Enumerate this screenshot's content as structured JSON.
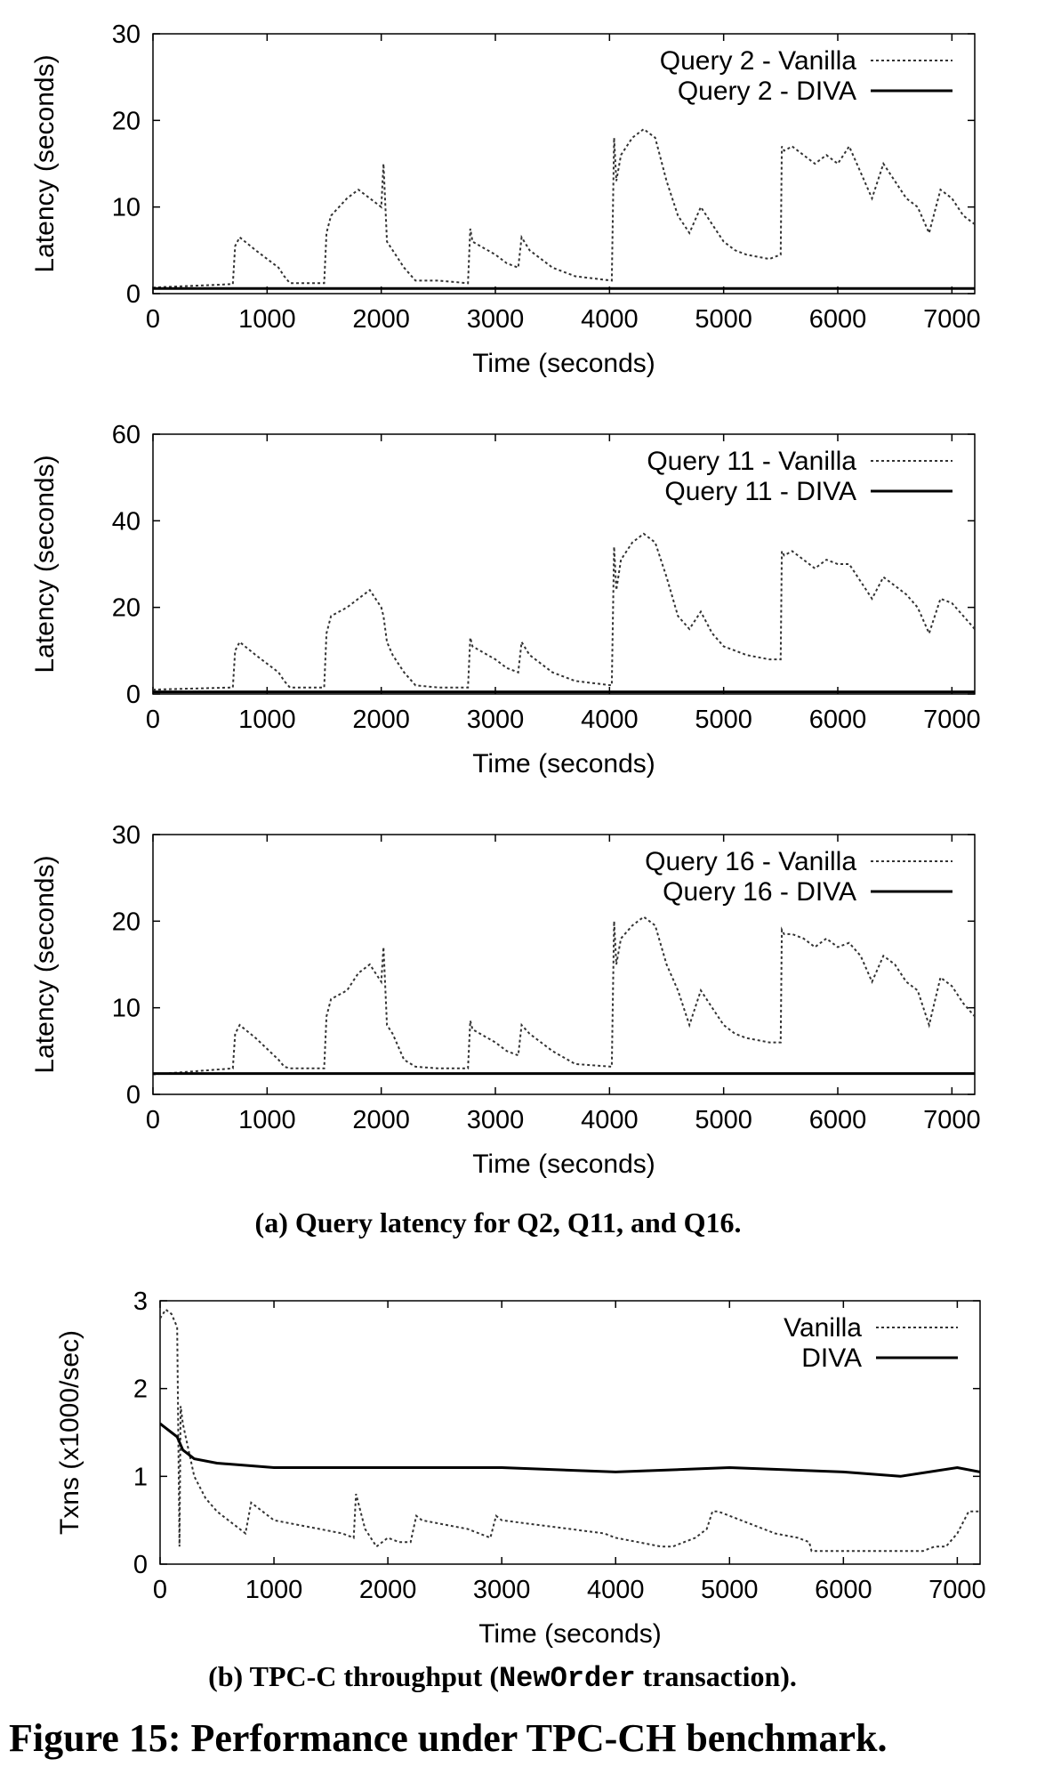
{
  "chart_data": [
    {
      "type": "line",
      "title": "",
      "xlabel": "Time (seconds)",
      "ylabel": "Latency (seconds)",
      "xlim": [
        0,
        7200
      ],
      "ylim": [
        0,
        30
      ],
      "xticks": [
        "0",
        "1000",
        "2000",
        "3000",
        "4000",
        "5000",
        "6000",
        "7000"
      ],
      "yticks": [
        "0",
        "10",
        "20",
        "30"
      ],
      "legend": "top-right",
      "series": [
        {
          "name": "Query 2 - Vanilla",
          "style": "dotted",
          "x": [
            0,
            700,
            720,
            760,
            900,
            1100,
            1150,
            1200,
            1500,
            1520,
            1560,
            1700,
            1800,
            1900,
            2000,
            2020,
            2050,
            2100,
            2200,
            2300,
            2500,
            2760,
            2780,
            2800,
            3000,
            3100,
            3200,
            3230,
            3300,
            3500,
            3700,
            4020,
            4040,
            4060,
            4100,
            4200,
            4300,
            4400,
            4500,
            4600,
            4700,
            4800,
            4900,
            5000,
            5100,
            5200,
            5400,
            5500,
            5510,
            5530,
            5600,
            5700,
            5800,
            5900,
            6000,
            6100,
            6200,
            6300,
            6400,
            6500,
            6600,
            6700,
            6800,
            6900,
            7000,
            7100,
            7200
          ],
          "y": [
            0.7,
            1.1,
            5.5,
            6.5,
            5.0,
            3.0,
            2.0,
            1.2,
            1.2,
            7.0,
            9.0,
            11.0,
            12.0,
            11.0,
            10.0,
            15.0,
            6.0,
            5.0,
            3.0,
            1.5,
            1.5,
            1.2,
            7.5,
            6.0,
            4.5,
            3.5,
            3.0,
            6.5,
            5.0,
            3.0,
            2.0,
            1.5,
            18.0,
            13.0,
            16.0,
            18.0,
            19.0,
            18.0,
            13.0,
            9.0,
            7.0,
            10.0,
            8.0,
            6.0,
            5.0,
            4.5,
            4.0,
            4.5,
            17.0,
            16.5,
            17.0,
            16.0,
            15.0,
            16.0,
            15.0,
            17.0,
            14.0,
            11.0,
            15.0,
            13.0,
            11.0,
            10.0,
            7.0,
            12.0,
            11.0,
            9.0,
            8.0
          ]
        },
        {
          "name": "Query 2 - DIVA",
          "style": "solid",
          "x": [
            0,
            1000,
            2000,
            3000,
            4000,
            5000,
            6000,
            7000,
            7200
          ],
          "y": [
            0.6,
            0.6,
            0.6,
            0.6,
            0.6,
            0.6,
            0.6,
            0.6,
            0.6
          ]
        }
      ]
    },
    {
      "type": "line",
      "title": "",
      "xlabel": "Time (seconds)",
      "ylabel": "Latency (seconds)",
      "xlim": [
        0,
        7200
      ],
      "ylim": [
        0,
        60
      ],
      "xticks": [
        "0",
        "1000",
        "2000",
        "3000",
        "4000",
        "5000",
        "6000",
        "7000"
      ],
      "yticks": [
        "0",
        "20",
        "40",
        "60"
      ],
      "legend": "top-right",
      "series": [
        {
          "name": "Query 11 - Vanilla",
          "style": "dotted",
          "x": [
            0,
            700,
            720,
            760,
            900,
            1100,
            1150,
            1200,
            1500,
            1520,
            1560,
            1700,
            1800,
            1900,
            2000,
            2020,
            2050,
            2100,
            2200,
            2300,
            2500,
            2760,
            2780,
            2800,
            3000,
            3100,
            3200,
            3230,
            3300,
            3500,
            3700,
            4020,
            4040,
            4060,
            4100,
            4200,
            4300,
            4400,
            4500,
            4600,
            4700,
            4800,
            4900,
            5000,
            5100,
            5200,
            5400,
            5500,
            5510,
            5530,
            5600,
            5700,
            5800,
            5900,
            6000,
            6100,
            6200,
            6300,
            6400,
            6500,
            6600,
            6700,
            6800,
            6900,
            7000,
            7100,
            7200
          ],
          "y": [
            1.0,
            1.5,
            10.0,
            12.0,
            9.0,
            5.0,
            3.0,
            1.5,
            1.5,
            14.0,
            18.0,
            20.0,
            22.0,
            24.0,
            20.0,
            18.0,
            12.0,
            9.0,
            5.0,
            2.0,
            1.5,
            1.5,
            13.0,
            11.0,
            8.0,
            6.0,
            5.0,
            12.0,
            9.0,
            5.0,
            3.0,
            2.0,
            34.0,
            24.0,
            31.0,
            35.0,
            37.0,
            35.0,
            27.0,
            18.0,
            15.0,
            19.0,
            14.0,
            11.0,
            10.0,
            9.0,
            8.0,
            8.0,
            33.0,
            32.0,
            33.0,
            31.0,
            29.0,
            31.0,
            30.0,
            30.0,
            26.0,
            22.0,
            27.0,
            25.0,
            23.0,
            20.0,
            14.0,
            22.0,
            21.0,
            18.0,
            15.0
          ]
        },
        {
          "name": "Query 11 - DIVA",
          "style": "solid",
          "x": [
            0,
            1000,
            2000,
            3000,
            4000,
            5000,
            6000,
            7000,
            7200
          ],
          "y": [
            0.5,
            0.5,
            0.5,
            0.5,
            0.5,
            0.5,
            0.5,
            0.5,
            0.5
          ]
        }
      ]
    },
    {
      "type": "line",
      "title": "",
      "xlabel": "Time (seconds)",
      "ylabel": "Latency (seconds)",
      "xlim": [
        0,
        7200
      ],
      "ylim": [
        0,
        30
      ],
      "xticks": [
        "0",
        "1000",
        "2000",
        "3000",
        "4000",
        "5000",
        "6000",
        "7000"
      ],
      "yticks": [
        "0",
        "10",
        "20",
        "30"
      ],
      "legend": "top-right",
      "series": [
        {
          "name": "Query 16 - Vanilla",
          "style": "dotted",
          "x": [
            0,
            700,
            720,
            760,
            900,
            1100,
            1150,
            1200,
            1500,
            1520,
            1560,
            1700,
            1800,
            1900,
            2000,
            2020,
            2050,
            2100,
            2200,
            2300,
            2500,
            2760,
            2780,
            2800,
            3000,
            3100,
            3200,
            3230,
            3300,
            3500,
            3700,
            4020,
            4040,
            4060,
            4100,
            4200,
            4300,
            4400,
            4500,
            4600,
            4700,
            4800,
            4900,
            5000,
            5100,
            5200,
            5400,
            5500,
            5510,
            5530,
            5600,
            5700,
            5800,
            5900,
            6000,
            6100,
            6200,
            6300,
            6400,
            6500,
            6600,
            6700,
            6800,
            6900,
            7000,
            7100,
            7200
          ],
          "y": [
            2.3,
            3.0,
            7.0,
            8.0,
            6.5,
            4.0,
            3.2,
            3.0,
            3.0,
            9.0,
            11.0,
            12.0,
            14.0,
            15.0,
            13.0,
            17.0,
            8.0,
            7.0,
            4.0,
            3.2,
            3.0,
            3.0,
            8.5,
            7.5,
            6.0,
            5.0,
            4.5,
            8.0,
            7.0,
            5.0,
            3.5,
            3.2,
            20.0,
            15.0,
            18.0,
            19.5,
            20.5,
            19.5,
            15.0,
            12.0,
            8.0,
            12.0,
            10.0,
            8.0,
            7.0,
            6.5,
            6.0,
            6.0,
            19.0,
            18.5,
            18.5,
            18.0,
            17.0,
            18.0,
            17.0,
            17.5,
            16.0,
            13.0,
            16.0,
            15.0,
            13.0,
            12.0,
            8.0,
            13.5,
            12.5,
            10.5,
            9.0
          ]
        },
        {
          "name": "Query 16 - DIVA",
          "style": "solid",
          "x": [
            0,
            1000,
            2000,
            3000,
            4000,
            5000,
            6000,
            7000,
            7200
          ],
          "y": [
            2.4,
            2.4,
            2.4,
            2.4,
            2.4,
            2.4,
            2.4,
            2.4,
            2.4
          ]
        }
      ]
    },
    {
      "type": "line",
      "title": "",
      "xlabel": "Time (seconds)",
      "ylabel": "Txns (x1000/sec)",
      "xlim": [
        0,
        7200
      ],
      "ylim": [
        0,
        3
      ],
      "xticks": [
        "0",
        "1000",
        "2000",
        "3000",
        "4000",
        "5000",
        "6000",
        "7000"
      ],
      "yticks": [
        "0",
        "1",
        "2",
        "3"
      ],
      "legend": "top-right",
      "series": [
        {
          "name": "Vanilla",
          "style": "dotted",
          "x": [
            0,
            50,
            100,
            150,
            170,
            180,
            200,
            300,
            400,
            500,
            600,
            700,
            750,
            800,
            1000,
            1200,
            1400,
            1600,
            1700,
            1720,
            1800,
            1900,
            2000,
            2100,
            2200,
            2250,
            2300,
            2500,
            2700,
            2900,
            2950,
            3000,
            3300,
            3600,
            3900,
            4000,
            4200,
            4400,
            4500,
            4600,
            4700,
            4800,
            4850,
            4900,
            5000,
            5200,
            5400,
            5600,
            5700,
            5720,
            5900,
            6200,
            6500,
            6700,
            6800,
            6900,
            7000,
            7100,
            7200
          ],
          "y": [
            2.8,
            2.9,
            2.85,
            2.7,
            0.2,
            1.8,
            1.6,
            1.0,
            0.75,
            0.6,
            0.5,
            0.4,
            0.35,
            0.7,
            0.5,
            0.45,
            0.4,
            0.35,
            0.3,
            0.8,
            0.4,
            0.2,
            0.3,
            0.25,
            0.25,
            0.55,
            0.5,
            0.45,
            0.4,
            0.3,
            0.55,
            0.5,
            0.45,
            0.4,
            0.35,
            0.3,
            0.25,
            0.2,
            0.2,
            0.25,
            0.3,
            0.4,
            0.6,
            0.6,
            0.55,
            0.45,
            0.35,
            0.3,
            0.25,
            0.15,
            0.15,
            0.15,
            0.15,
            0.15,
            0.2,
            0.2,
            0.35,
            0.6,
            0.6
          ]
        },
        {
          "name": "DIVA",
          "style": "solid",
          "x": [
            0,
            50,
            100,
            150,
            200,
            300,
            500,
            1000,
            2000,
            3000,
            4000,
            5000,
            6000,
            6500,
            7000,
            7200
          ],
          "y": [
            1.6,
            1.55,
            1.5,
            1.45,
            1.3,
            1.2,
            1.15,
            1.1,
            1.1,
            1.1,
            1.05,
            1.1,
            1.05,
            1.0,
            1.1,
            1.05
          ]
        }
      ]
    }
  ],
  "captions": {
    "subfig_a": "(a) Query latency for Q2, Q11, and Q16.",
    "subfig_b_prefix": "(b) TPC-C throughput (",
    "subfig_b_code": "NewOrder",
    "subfig_b_suffix": " transaction).",
    "figure": "Figure 15: Performance under TPC-CH benchmark."
  }
}
